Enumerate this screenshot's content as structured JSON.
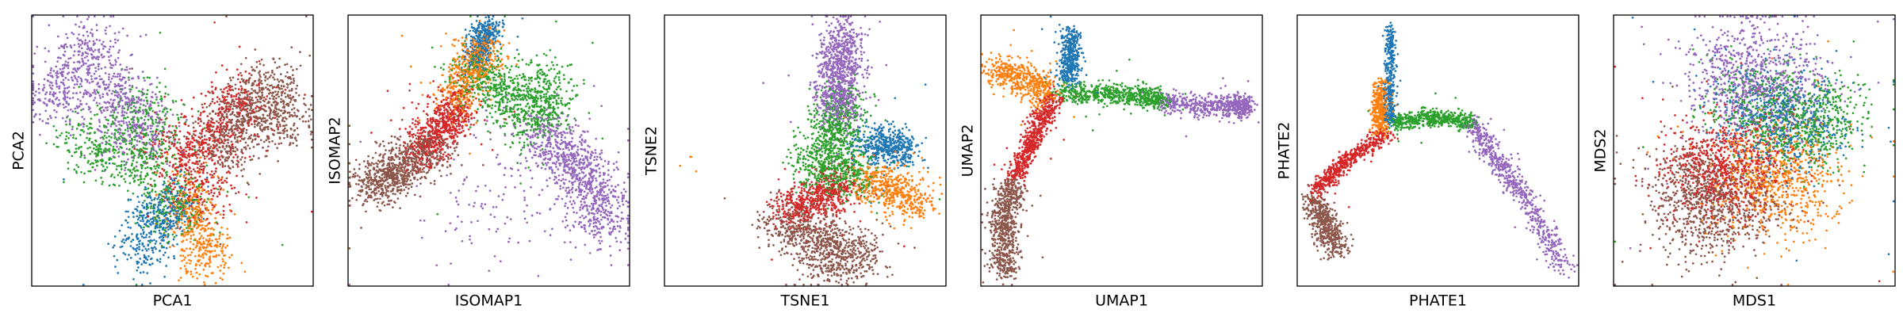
{
  "palette": {
    "blue": "#1f77b4",
    "orange": "#ff7f0e",
    "green": "#2ca02c",
    "red": "#d62728",
    "purple": "#9467bd",
    "brown": "#8c564b"
  },
  "chart_data": [
    {
      "type": "scatter",
      "xlabel": "PCA1",
      "ylabel": "PCA2",
      "xlim": [
        0,
        1
      ],
      "ylim": [
        0,
        1
      ],
      "grid": false,
      "legend": "none",
      "x_ticks": [],
      "y_ticks": [],
      "clusters": [
        {
          "color": "purple",
          "shape": "blob",
          "pts": [
            [
              0.3,
              0.7
            ],
            [
              0.1,
              0.72
            ],
            [
              0.2,
              0.86
            ],
            [
              0.38,
              0.58
            ]
          ],
          "w": 0.065,
          "n": 900
        },
        {
          "color": "green",
          "shape": "blob",
          "pts": [
            [
              0.4,
              0.45
            ],
            [
              0.22,
              0.52
            ],
            [
              0.5,
              0.3
            ],
            [
              0.4,
              0.62
            ]
          ],
          "w": 0.065,
          "n": 800
        },
        {
          "color": "blue",
          "shape": "blob",
          "pts": [
            [
              0.45,
              0.25
            ],
            [
              0.4,
              0.15
            ],
            [
              0.5,
              0.3
            ]
          ],
          "w": 0.05,
          "n": 450
        },
        {
          "color": "orange",
          "shape": "blob",
          "pts": [
            [
              0.58,
              0.23
            ],
            [
              0.62,
              0.12
            ],
            [
              0.55,
              0.33
            ]
          ],
          "w": 0.05,
          "n": 450
        },
        {
          "color": "red",
          "shape": "blob",
          "pts": [
            [
              0.64,
              0.55
            ],
            [
              0.52,
              0.5
            ],
            [
              0.72,
              0.68
            ],
            [
              0.6,
              0.36
            ]
          ],
          "w": 0.06,
          "n": 700
        },
        {
          "color": "brown",
          "shape": "blob",
          "pts": [
            [
              0.76,
              0.63
            ],
            [
              0.68,
              0.52
            ],
            [
              0.84,
              0.73
            ],
            [
              0.88,
              0.62
            ]
          ],
          "w": 0.06,
          "n": 900
        }
      ]
    },
    {
      "type": "scatter",
      "xlabel": "ISOMAP1",
      "ylabel": "ISOMAP2",
      "xlim": [
        0,
        1
      ],
      "ylim": [
        0,
        1
      ],
      "grid": false,
      "legend": "none",
      "x_ticks": [],
      "y_ticks": [],
      "clusters": [
        {
          "color": "brown",
          "shape": "path",
          "pts": [
            [
              0.07,
              0.38
            ],
            [
              0.18,
              0.42
            ],
            [
              0.3,
              0.52
            ]
          ],
          "w": 0.045,
          "n": 850
        },
        {
          "color": "red",
          "shape": "path",
          "pts": [
            [
              0.25,
              0.48
            ],
            [
              0.33,
              0.58
            ],
            [
              0.4,
              0.68
            ]
          ],
          "w": 0.04,
          "n": 650
        },
        {
          "color": "orange",
          "shape": "path",
          "pts": [
            [
              0.38,
              0.68
            ],
            [
              0.44,
              0.8
            ],
            [
              0.48,
              0.88
            ]
          ],
          "w": 0.04,
          "n": 550
        },
        {
          "color": "blue",
          "shape": "path",
          "pts": [
            [
              0.45,
              0.82
            ],
            [
              0.48,
              0.92
            ],
            [
              0.5,
              0.96
            ]
          ],
          "w": 0.025,
          "n": 350
        },
        {
          "color": "green",
          "shape": "blob",
          "pts": [
            [
              0.57,
              0.7
            ],
            [
              0.47,
              0.76
            ],
            [
              0.66,
              0.62
            ],
            [
              0.7,
              0.72
            ]
          ],
          "w": 0.055,
          "n": 900
        },
        {
          "color": "purple",
          "shape": "path",
          "pts": [
            [
              0.68,
              0.58
            ],
            [
              0.78,
              0.48
            ],
            [
              0.88,
              0.36
            ],
            [
              0.9,
              0.2
            ]
          ],
          "w": 0.05,
          "n": 900
        },
        {
          "color": "purple",
          "shape": "scatter",
          "pts": [
            [
              0.45,
              0.28
            ],
            [
              0.7,
              0.3
            ],
            [
              0.55,
              0.5
            ]
          ],
          "w": 0.12,
          "n": 140
        }
      ]
    },
    {
      "type": "scatter",
      "xlabel": "TSNE1",
      "ylabel": "TSNE2",
      "xlim": [
        0,
        1
      ],
      "ylim": [
        0,
        1
      ],
      "grid": false,
      "legend": "none",
      "x_ticks": [],
      "y_ticks": [],
      "clusters": [
        {
          "color": "purple",
          "shape": "path",
          "pts": [
            [
              0.62,
              0.62
            ],
            [
              0.62,
              0.78
            ],
            [
              0.63,
              0.94
            ]
          ],
          "w": 0.04,
          "n": 900
        },
        {
          "color": "green",
          "shape": "blob",
          "pts": [
            [
              0.6,
              0.55
            ],
            [
              0.55,
              0.45
            ],
            [
              0.66,
              0.42
            ],
            [
              0.62,
              0.64
            ]
          ],
          "w": 0.05,
          "n": 1000
        },
        {
          "color": "blue",
          "shape": "blob",
          "pts": [
            [
              0.8,
              0.52
            ],
            [
              0.74,
              0.52
            ],
            [
              0.84,
              0.5
            ]
          ],
          "w": 0.035,
          "n": 500
        },
        {
          "color": "orange",
          "shape": "blob",
          "pts": [
            [
              0.82,
              0.35
            ],
            [
              0.74,
              0.38
            ],
            [
              0.88,
              0.32
            ]
          ],
          "w": 0.04,
          "n": 500
        },
        {
          "color": "red",
          "shape": "blob",
          "pts": [
            [
              0.55,
              0.33
            ],
            [
              0.46,
              0.3
            ],
            [
              0.62,
              0.36
            ]
          ],
          "w": 0.04,
          "n": 550
        },
        {
          "color": "brown",
          "shape": "blob",
          "pts": [
            [
              0.55,
              0.18
            ],
            [
              0.44,
              0.22
            ],
            [
              0.68,
              0.12
            ],
            [
              0.58,
              0.1
            ]
          ],
          "w": 0.05,
          "n": 900
        },
        {
          "color": "orange",
          "shape": "scatter",
          "pts": [
            [
              0.08,
              0.45
            ]
          ],
          "w": 0.015,
          "n": 4
        }
      ]
    },
    {
      "type": "scatter",
      "xlabel": "UMAP1",
      "ylabel": "UMAP2",
      "xlim": [
        0,
        1
      ],
      "ylim": [
        0,
        1
      ],
      "grid": false,
      "legend": "none",
      "x_ticks": [],
      "y_ticks": [],
      "clusters": [
        {
          "color": "brown",
          "shape": "path",
          "pts": [
            [
              0.09,
              0.05
            ],
            [
              0.08,
              0.22
            ],
            [
              0.11,
              0.38
            ]
          ],
          "w": 0.025,
          "n": 700
        },
        {
          "color": "red",
          "shape": "path",
          "pts": [
            [
              0.12,
              0.4
            ],
            [
              0.19,
              0.55
            ],
            [
              0.26,
              0.7
            ]
          ],
          "w": 0.018,
          "n": 600
        },
        {
          "color": "orange",
          "shape": "blob",
          "pts": [
            [
              0.12,
              0.77
            ],
            [
              0.07,
              0.79
            ],
            [
              0.17,
              0.76
            ],
            [
              0.22,
              0.72
            ]
          ],
          "w": 0.03,
          "n": 500
        },
        {
          "color": "blue",
          "shape": "path",
          "pts": [
            [
              0.32,
              0.94
            ],
            [
              0.32,
              0.84
            ],
            [
              0.31,
              0.76
            ]
          ],
          "w": 0.018,
          "n": 400
        },
        {
          "color": "green",
          "shape": "path",
          "pts": [
            [
              0.28,
              0.72
            ],
            [
              0.42,
              0.71
            ],
            [
              0.58,
              0.7
            ],
            [
              0.64,
              0.68
            ]
          ],
          "w": 0.02,
          "n": 650
        },
        {
          "color": "purple",
          "shape": "path",
          "pts": [
            [
              0.64,
              0.68
            ],
            [
              0.78,
              0.66
            ],
            [
              0.9,
              0.67
            ],
            [
              0.95,
              0.66
            ]
          ],
          "w": 0.02,
          "n": 600
        }
      ]
    },
    {
      "type": "scatter",
      "xlabel": "PHATE1",
      "ylabel": "PHATE2",
      "xlim": [
        0,
        1
      ],
      "ylim": [
        0,
        1
      ],
      "grid": false,
      "legend": "none",
      "x_ticks": [],
      "y_ticks": [],
      "clusters": [
        {
          "color": "brown",
          "shape": "path",
          "pts": [
            [
              0.06,
              0.32
            ],
            [
              0.1,
              0.22
            ],
            [
              0.14,
              0.13
            ]
          ],
          "w": 0.025,
          "n": 500
        },
        {
          "color": "red",
          "shape": "path",
          "pts": [
            [
              0.06,
              0.35
            ],
            [
              0.18,
              0.47
            ],
            [
              0.32,
              0.56
            ]
          ],
          "w": 0.015,
          "n": 550
        },
        {
          "color": "orange",
          "shape": "path",
          "pts": [
            [
              0.3,
              0.57
            ],
            [
              0.29,
              0.65
            ],
            [
              0.3,
              0.75
            ]
          ],
          "w": 0.015,
          "n": 350
        },
        {
          "color": "blue",
          "shape": "path",
          "pts": [
            [
              0.33,
              0.6
            ],
            [
              0.33,
              0.75
            ],
            [
              0.33,
              0.95
            ]
          ],
          "w": 0.01,
          "n": 350
        },
        {
          "color": "green",
          "shape": "path",
          "pts": [
            [
              0.34,
              0.6
            ],
            [
              0.44,
              0.62
            ],
            [
              0.54,
              0.62
            ],
            [
              0.62,
              0.6
            ]
          ],
          "w": 0.015,
          "n": 550
        },
        {
          "color": "purple",
          "shape": "path",
          "pts": [
            [
              0.62,
              0.6
            ],
            [
              0.72,
              0.45
            ],
            [
              0.84,
              0.28
            ],
            [
              0.95,
              0.06
            ]
          ],
          "w": 0.02,
          "n": 650
        }
      ]
    },
    {
      "type": "scatter",
      "xlabel": "MDS1",
      "ylabel": "MDS2",
      "xlim": [
        0,
        1
      ],
      "ylim": [
        0,
        1
      ],
      "grid": false,
      "legend": "none",
      "x_ticks": [],
      "y_ticks": [],
      "clusters": [
        {
          "color": "purple",
          "shape": "blob",
          "pts": [
            [
              0.5,
              0.72
            ],
            [
              0.38,
              0.76
            ],
            [
              0.62,
              0.72
            ],
            [
              0.5,
              0.86
            ]
          ],
          "w": 0.09,
          "n": 800
        },
        {
          "color": "blue",
          "shape": "blob",
          "pts": [
            [
              0.58,
              0.62
            ],
            [
              0.5,
              0.66
            ],
            [
              0.68,
              0.6
            ]
          ],
          "w": 0.09,
          "n": 600
        },
        {
          "color": "green",
          "shape": "blob",
          "pts": [
            [
              0.6,
              0.62
            ],
            [
              0.7,
              0.56
            ],
            [
              0.5,
              0.68
            ],
            [
              0.74,
              0.64
            ]
          ],
          "w": 0.08,
          "n": 800
        },
        {
          "color": "orange",
          "shape": "blob",
          "pts": [
            [
              0.55,
              0.38
            ],
            [
              0.62,
              0.44
            ],
            [
              0.48,
              0.4
            ],
            [
              0.66,
              0.34
            ]
          ],
          "w": 0.09,
          "n": 700
        },
        {
          "color": "red",
          "shape": "blob",
          "pts": [
            [
              0.42,
              0.44
            ],
            [
              0.3,
              0.48
            ],
            [
              0.52,
              0.5
            ],
            [
              0.36,
              0.36
            ]
          ],
          "w": 0.08,
          "n": 800
        },
        {
          "color": "brown",
          "shape": "blob",
          "pts": [
            [
              0.36,
              0.34
            ],
            [
              0.26,
              0.38
            ],
            [
              0.46,
              0.28
            ],
            [
              0.3,
              0.24
            ]
          ],
          "w": 0.08,
          "n": 900
        }
      ]
    }
  ]
}
